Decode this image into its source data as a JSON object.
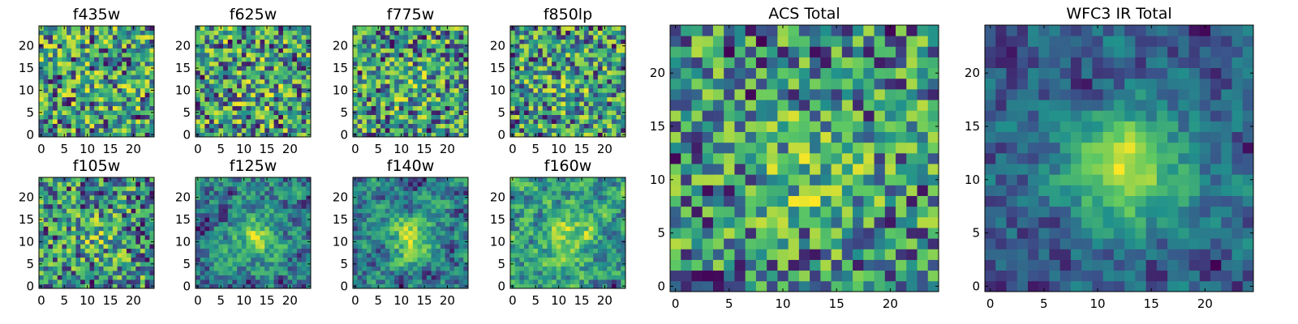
{
  "chart_data": [
    {
      "type": "heatmap",
      "title": "f435w",
      "rows": 25,
      "cols": 25,
      "xlim": [
        -0.5,
        24.5
      ],
      "ylim": [
        -0.5,
        24.5
      ],
      "x_ticks": [
        0,
        5,
        10,
        15,
        20
      ],
      "y_ticks": [
        0,
        5,
        10,
        15,
        20
      ],
      "colormap": "viridis",
      "seed": 11,
      "blob": 0.05
    },
    {
      "type": "heatmap",
      "title": "f625w",
      "rows": 25,
      "cols": 25,
      "xlim": [
        -0.5,
        24.5
      ],
      "ylim": [
        -0.5,
        24.5
      ],
      "x_ticks": [
        0,
        5,
        10,
        15,
        20
      ],
      "y_ticks": [
        0,
        5,
        10,
        15,
        20
      ],
      "colormap": "viridis",
      "seed": 23,
      "blob": 0.08
    },
    {
      "type": "heatmap",
      "title": "f775w",
      "rows": 25,
      "cols": 25,
      "xlim": [
        -0.5,
        24.5
      ],
      "ylim": [
        -0.5,
        24.5
      ],
      "x_ticks": [
        0,
        5,
        10,
        15,
        20
      ],
      "y_ticks": [
        0,
        5,
        10,
        15,
        20
      ],
      "colormap": "viridis",
      "seed": 37,
      "blob": 0.12
    },
    {
      "type": "heatmap",
      "title": "f850lp",
      "rows": 25,
      "cols": 25,
      "xlim": [
        -0.5,
        24.5
      ],
      "ylim": [
        -0.5,
        24.5
      ],
      "x_ticks": [
        0,
        5,
        10,
        15,
        20
      ],
      "y_ticks": [
        0,
        5,
        10,
        15,
        20
      ],
      "colormap": "viridis",
      "seed": 41,
      "blob": 0.1
    },
    {
      "type": "heatmap",
      "title": "f105w",
      "rows": 25,
      "cols": 25,
      "xlim": [
        -0.5,
        24.5
      ],
      "ylim": [
        -0.5,
        24.5
      ],
      "x_ticks": [
        0,
        5,
        10,
        15,
        20
      ],
      "y_ticks": [
        0,
        5,
        10,
        15,
        20
      ],
      "colormap": "viridis",
      "seed": 53,
      "blob": 0.15
    },
    {
      "type": "heatmap",
      "title": "f125w",
      "rows": 25,
      "cols": 25,
      "xlim": [
        -0.5,
        24.5
      ],
      "ylim": [
        -0.5,
        24.5
      ],
      "x_ticks": [
        0,
        5,
        10,
        15,
        20
      ],
      "y_ticks": [
        0,
        5,
        10,
        15,
        20
      ],
      "colormap": "viridis",
      "seed": 67,
      "blob": 0.3
    },
    {
      "type": "heatmap",
      "title": "f140w",
      "rows": 25,
      "cols": 25,
      "xlim": [
        -0.5,
        24.5
      ],
      "ylim": [
        -0.5,
        24.5
      ],
      "x_ticks": [
        0,
        5,
        10,
        15,
        20
      ],
      "y_ticks": [
        0,
        5,
        10,
        15,
        20
      ],
      "colormap": "viridis",
      "seed": 71,
      "blob": 0.35
    },
    {
      "type": "heatmap",
      "title": "f160w",
      "rows": 25,
      "cols": 25,
      "xlim": [
        -0.5,
        24.5
      ],
      "ylim": [
        -0.5,
        24.5
      ],
      "x_ticks": [
        0,
        5,
        10,
        15,
        20
      ],
      "y_ticks": [
        0,
        5,
        10,
        15,
        20
      ],
      "colormap": "viridis",
      "seed": 83,
      "blob": 0.3
    },
    {
      "type": "heatmap",
      "title": "ACS Total",
      "rows": 25,
      "cols": 25,
      "xlim": [
        -0.5,
        24.5
      ],
      "ylim": [
        -0.5,
        24.5
      ],
      "x_ticks": [
        0,
        5,
        10,
        15,
        20
      ],
      "y_ticks": [
        0,
        5,
        10,
        15,
        20
      ],
      "colormap": "viridis",
      "seed": 97,
      "blob": 0.2
    },
    {
      "type": "heatmap",
      "title": "WFC3 IR Total",
      "rows": 25,
      "cols": 25,
      "xlim": [
        -0.5,
        24.5
      ],
      "ylim": [
        -0.5,
        24.5
      ],
      "x_ticks": [
        0,
        5,
        10,
        15,
        20
      ],
      "y_ticks": [
        0,
        5,
        10,
        15,
        20
      ],
      "colormap": "viridis",
      "seed": 109,
      "blob": 0.55
    }
  ],
  "colormap_stops": [
    "#440154",
    "#3b528b",
    "#21918c",
    "#5ec962",
    "#fde725"
  ]
}
